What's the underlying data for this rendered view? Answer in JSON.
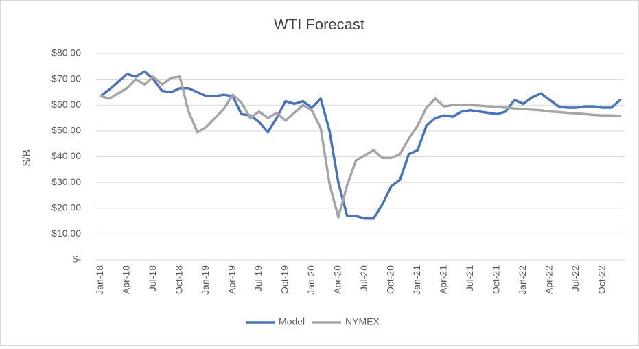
{
  "chart_data": {
    "type": "line",
    "title": "WTI Forecast",
    "y_label": "$/B",
    "categories": [
      "Jan-18",
      null,
      null,
      "Apr-18",
      null,
      null,
      "Jul-18",
      null,
      null,
      "Oct-18",
      null,
      null,
      "Jan-19",
      null,
      null,
      "Apr-19",
      null,
      null,
      "Jul-19",
      null,
      null,
      "Oct-19",
      null,
      null,
      "Jan-20",
      null,
      null,
      "Apr-20",
      null,
      null,
      "Jul-20",
      null,
      null,
      "Oct-20",
      null,
      null,
      "Jan-21",
      null,
      null,
      "Apr-21",
      null,
      null,
      "Jul-21",
      null,
      null,
      "Oct-21",
      null,
      null,
      "Jan-22",
      null,
      null,
      "Apr-22",
      null,
      null,
      "Jul-22",
      null,
      null,
      "Oct-22",
      null,
      null
    ],
    "series": [
      {
        "name": "Model",
        "color": "#4472c4",
        "values": [
          63.5,
          66,
          69,
          72,
          71,
          73,
          70,
          65.5,
          65,
          66.5,
          66.5,
          65,
          63.5,
          63.5,
          64,
          63.5,
          56.5,
          56,
          53.5,
          49.5,
          55,
          61.5,
          60.5,
          61.5,
          59,
          62.5,
          50,
          30,
          17,
          17,
          16,
          16,
          21.5,
          28.5,
          31,
          41,
          42.5,
          52,
          55,
          56,
          55.5,
          57.5,
          58,
          57.5,
          57,
          56.5,
          57.5,
          62,
          60.5,
          63,
          64.5,
          62,
          59.5,
          59,
          59,
          59.5,
          59.5,
          59,
          59,
          62
        ]
      },
      {
        "name": "NYMEX",
        "color": "#a5a5a5",
        "values": [
          63.5,
          62.5,
          64.5,
          66.5,
          70,
          68,
          71,
          68,
          70.5,
          71,
          57.5,
          49.5,
          51.5,
          55,
          58.5,
          64,
          61,
          55,
          57.5,
          55,
          57,
          54,
          57,
          60,
          58,
          51,
          29.5,
          16.5,
          29,
          38.5,
          40.5,
          42.5,
          39.5,
          39.5,
          41,
          47,
          52,
          59,
          62.5,
          59.5,
          60,
          60,
          60,
          59.8,
          59.5,
          59.3,
          59,
          58.7,
          58.5,
          58.2,
          58,
          57.5,
          57.3,
          57,
          56.8,
          56.5,
          56.2,
          56,
          56,
          55.8
        ]
      }
    ],
    "ylim": [
      0,
      80
    ],
    "yticks": [
      {
        "value": 0,
        "label": "$-"
      },
      {
        "value": 10,
        "label": "$10.00"
      },
      {
        "value": 20,
        "label": "$20.00"
      },
      {
        "value": 30,
        "label": "$30.00"
      },
      {
        "value": 40,
        "label": "$40.00"
      },
      {
        "value": 50,
        "label": "$50.00"
      },
      {
        "value": 60,
        "label": "$60.00"
      },
      {
        "value": 70,
        "label": "$70.00"
      },
      {
        "value": 80,
        "label": "$80.00"
      }
    ],
    "grid": true,
    "legend": "bottom"
  }
}
